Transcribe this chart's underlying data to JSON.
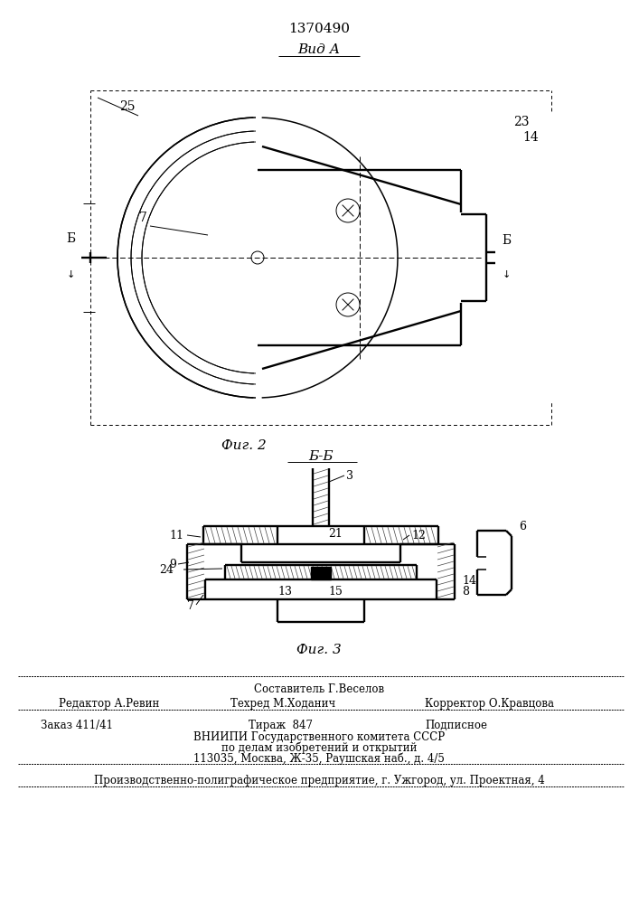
{
  "patent_number": "1370490",
  "fig2_label": "Вид А",
  "fig2_caption": "Фиг. 2",
  "fig3_caption": "Фиг. 3",
  "bb_label": "Б-Б",
  "bg_color": "#ffffff",
  "line_color": "#000000",
  "composer": "Составитель Г.Веселов"
}
